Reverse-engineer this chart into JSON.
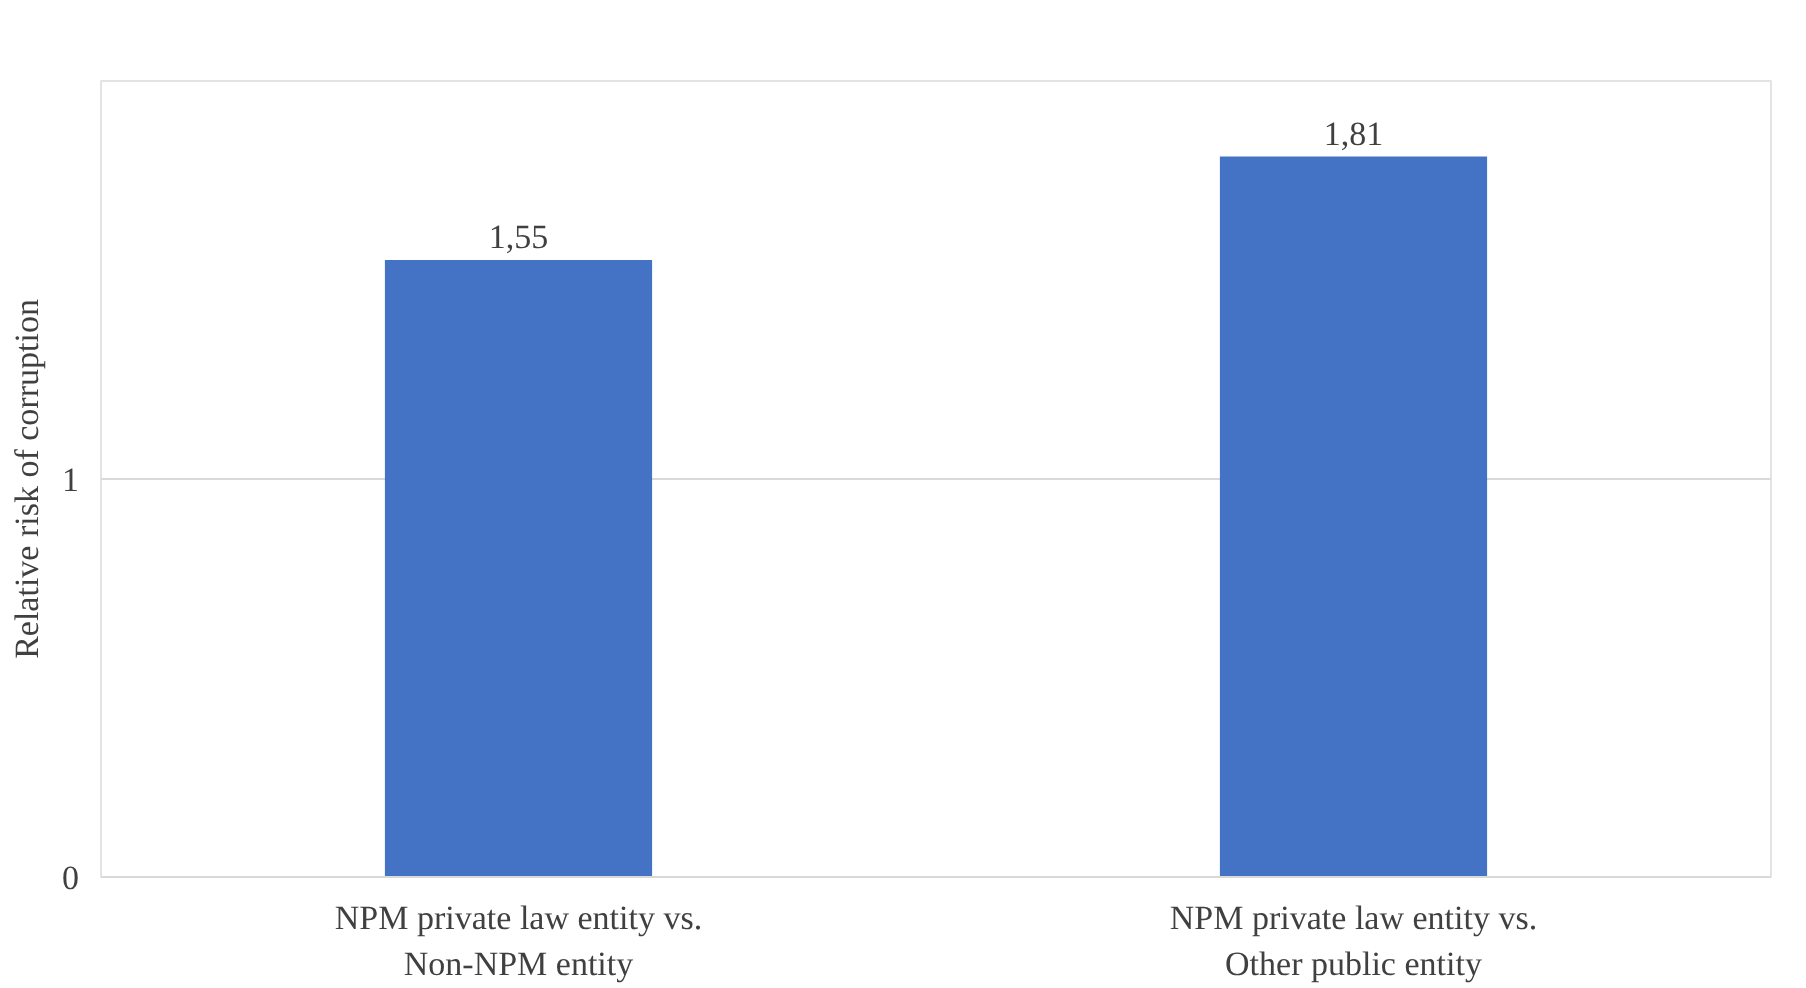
{
  "chart_data": {
    "type": "bar",
    "ylabel": "Relative risk of corruption",
    "categories": [
      "NPM private law entity vs.\nNon-NPM entity",
      "NPM private law entity vs.\nOther public entity"
    ],
    "values": [
      1.55,
      1.81
    ],
    "value_labels": [
      "1,55",
      "1,81"
    ],
    "color": "#4472c4",
    "ylim": [
      0,
      2
    ],
    "yticks": [
      0,
      1
    ],
    "grid": "y"
  }
}
